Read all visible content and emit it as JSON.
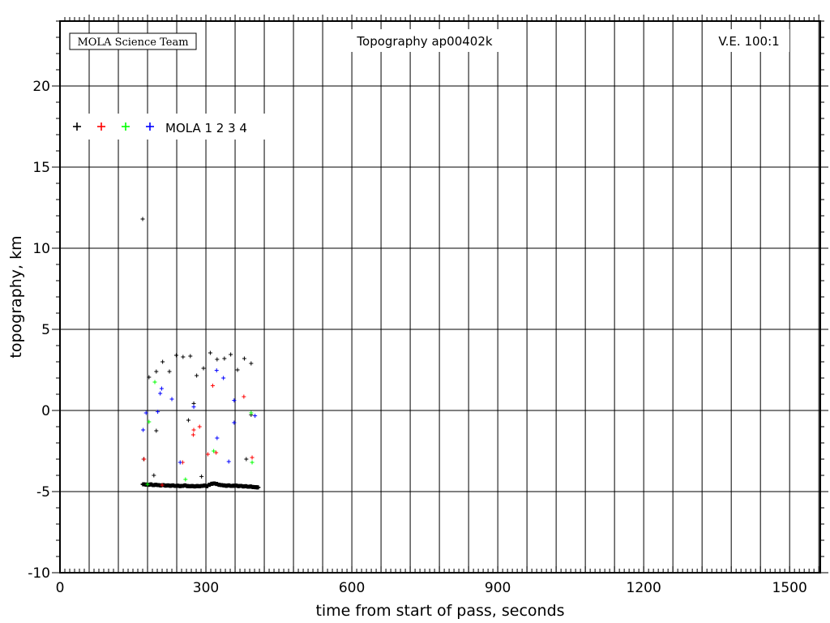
{
  "chart_data": {
    "type": "scatter",
    "title": "Topography ap00402k",
    "credit": "MOLA Science Team",
    "annotation": "V.E. 100:1",
    "xlabel": "time from start of pass, seconds",
    "ylabel": "topography, km",
    "xlim": [
      0,
      1563
    ],
    "ylim": [
      -10,
      24
    ],
    "xticks": [
      0,
      300,
      600,
      900,
      1200,
      1500
    ],
    "yticks": [
      -10,
      -5,
      0,
      5,
      10,
      15,
      20
    ],
    "grid": true,
    "legend": {
      "position": "top-left",
      "label": "MOLA 1 2 3 4"
    },
    "series": [
      {
        "name": "1",
        "color": "#000000",
        "points": [
          [
            170,
            11.8
          ],
          [
            172,
            -3.0
          ],
          [
            183,
            2.05
          ],
          [
            198,
            2.4
          ],
          [
            211,
            3.0
          ],
          [
            225,
            2.4
          ],
          [
            239,
            3.4
          ],
          [
            253,
            3.3
          ],
          [
            268,
            3.35
          ],
          [
            281,
            2.15
          ],
          [
            295,
            2.6
          ],
          [
            309,
            3.55
          ],
          [
            323,
            3.15
          ],
          [
            338,
            3.2
          ],
          [
            351,
            3.45
          ],
          [
            365,
            2.5
          ],
          [
            379,
            3.2
          ],
          [
            393,
            2.9
          ],
          [
            275,
            0.43
          ],
          [
            264,
            -0.6
          ],
          [
            198,
            -1.25
          ],
          [
            393,
            -0.27
          ],
          [
            383,
            -3.0
          ],
          [
            193,
            -4.0
          ],
          [
            291,
            -4.07
          ]
        ]
      },
      {
        "name": "2",
        "color": "#ff0000",
        "points": [
          [
            173,
            -3.0
          ],
          [
            314,
            1.53
          ],
          [
            378,
            0.85
          ],
          [
            275,
            -1.2
          ],
          [
            287,
            -1.0
          ],
          [
            274,
            -1.5
          ],
          [
            304,
            -2.7
          ],
          [
            321,
            -2.6
          ],
          [
            395,
            -2.9
          ],
          [
            252,
            -3.2
          ],
          [
            210,
            -4.6
          ]
        ]
      },
      {
        "name": "3",
        "color": "#00ff00",
        "points": [
          [
            195,
            1.75
          ],
          [
            183,
            -0.7
          ],
          [
            393,
            -0.15
          ],
          [
            316,
            -2.5
          ],
          [
            395,
            -3.2
          ],
          [
            258,
            -4.25
          ],
          [
            180,
            -4.55
          ]
        ]
      },
      {
        "name": "4",
        "color": "#0000ff",
        "points": [
          [
            209,
            1.35
          ],
          [
            206,
            1.05
          ],
          [
            230,
            0.7
          ],
          [
            322,
            2.47
          ],
          [
            336,
            2.0
          ],
          [
            275,
            0.22
          ],
          [
            358,
            0.62
          ],
          [
            177,
            -0.15
          ],
          [
            201,
            -0.08
          ],
          [
            171,
            -1.2
          ],
          [
            358,
            -0.75
          ],
          [
            401,
            -0.33
          ],
          [
            323,
            -1.7
          ],
          [
            347,
            -3.15
          ],
          [
            247,
            -3.2
          ]
        ]
      }
    ],
    "ground_track": {
      "color": "#000000",
      "points": [
        [
          170,
          -4.55
        ],
        [
          175,
          -4.57
        ],
        [
          180,
          -4.58
        ],
        [
          185,
          -4.56
        ],
        [
          190,
          -4.6
        ],
        [
          195,
          -4.58
        ],
        [
          200,
          -4.6
        ],
        [
          205,
          -4.62
        ],
        [
          210,
          -4.6
        ],
        [
          215,
          -4.63
        ],
        [
          220,
          -4.62
        ],
        [
          225,
          -4.64
        ],
        [
          230,
          -4.62
        ],
        [
          235,
          -4.65
        ],
        [
          240,
          -4.64
        ],
        [
          245,
          -4.66
        ],
        [
          250,
          -4.65
        ],
        [
          255,
          -4.62
        ],
        [
          260,
          -4.66
        ],
        [
          265,
          -4.67
        ],
        [
          270,
          -4.66
        ],
        [
          275,
          -4.68
        ],
        [
          280,
          -4.66
        ],
        [
          285,
          -4.67
        ],
        [
          290,
          -4.65
        ],
        [
          295,
          -4.63
        ],
        [
          300,
          -4.66
        ],
        [
          305,
          -4.58
        ],
        [
          310,
          -4.52
        ],
        [
          315,
          -4.5
        ],
        [
          320,
          -4.53
        ],
        [
          325,
          -4.58
        ],
        [
          330,
          -4.6
        ],
        [
          335,
          -4.62
        ],
        [
          340,
          -4.64
        ],
        [
          345,
          -4.62
        ],
        [
          350,
          -4.65
        ],
        [
          355,
          -4.64
        ],
        [
          360,
          -4.63
        ],
        [
          365,
          -4.66
        ],
        [
          370,
          -4.65
        ],
        [
          375,
          -4.68
        ],
        [
          380,
          -4.67
        ],
        [
          385,
          -4.7
        ],
        [
          390,
          -4.69
        ],
        [
          395,
          -4.72
        ],
        [
          400,
          -4.73
        ],
        [
          404,
          -4.74
        ]
      ]
    }
  }
}
